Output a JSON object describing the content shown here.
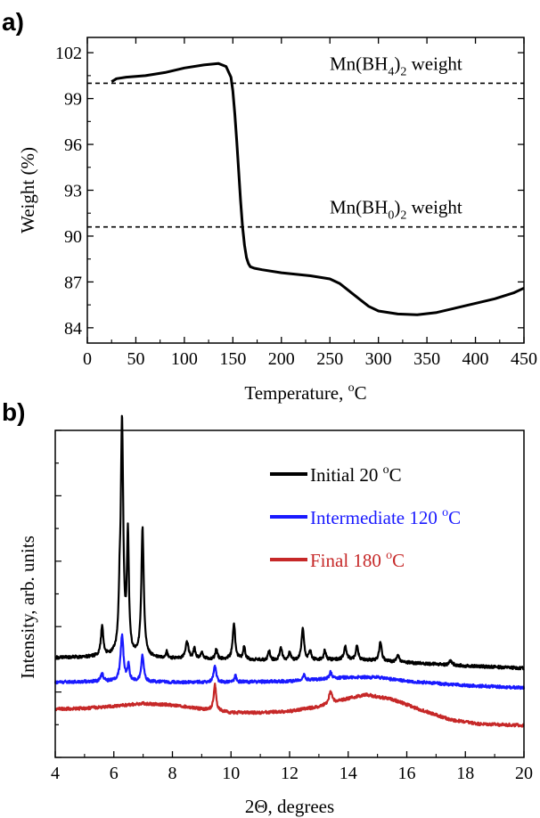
{
  "chart_data": [
    {
      "panel": "a)",
      "type": "line",
      "xlabel": "Temperature, °C",
      "xlabel_parts": [
        "Temperature, ",
        "o",
        "C"
      ],
      "ylabel": "Weight (%)",
      "xlim": [
        0,
        450
      ],
      "ylim": [
        83,
        103
      ],
      "xticks": [
        0,
        50,
        100,
        150,
        200,
        250,
        300,
        350,
        400,
        450
      ],
      "yticks": [
        84,
        87,
        90,
        93,
        96,
        99,
        102
      ],
      "reference_lines": [
        {
          "y": 100.0,
          "label": "Mn(BH4)2 weight",
          "label_parts": [
            "Mn(BH",
            "4",
            ")",
            "2",
            " weight"
          ]
        },
        {
          "y": 90.6,
          "label": "Mn(BH0)2 weight",
          "label_parts": [
            "Mn(BH",
            "0",
            ")",
            "2",
            " weight"
          ]
        }
      ],
      "series": [
        {
          "color": "#000000",
          "x": [
            25,
            30,
            40,
            60,
            80,
            100,
            120,
            135,
            143,
            148,
            150,
            152,
            154,
            156,
            158,
            160,
            162,
            164,
            166,
            168,
            172,
            180,
            200,
            230,
            250,
            260,
            270,
            280,
            290,
            300,
            320,
            340,
            360,
            380,
            400,
            420,
            440,
            450
          ],
          "y": [
            100.1,
            100.3,
            100.4,
            100.5,
            100.7,
            101.0,
            101.2,
            101.3,
            101.1,
            100.4,
            99.5,
            98.0,
            96.2,
            94.2,
            92.3,
            90.6,
            89.4,
            88.6,
            88.2,
            88.0,
            87.9,
            87.8,
            87.6,
            87.4,
            87.2,
            86.9,
            86.4,
            85.9,
            85.4,
            85.1,
            84.9,
            84.85,
            85.0,
            85.3,
            85.6,
            85.9,
            86.3,
            86.6
          ]
        }
      ]
    },
    {
      "panel": "b)",
      "type": "line",
      "xlabel": "2Θ, degrees",
      "ylabel": "Intensity, arb. units",
      "xlim": [
        4,
        20
      ],
      "ylim": [
        0,
        100
      ],
      "xticks": [
        4,
        6,
        8,
        10,
        12,
        14,
        16,
        18,
        20
      ],
      "legend_placement": "top-right",
      "series": [
        {
          "name": "Initial 20 °C",
          "name_parts": [
            "Initial 20 ",
            "o",
            "C"
          ],
          "color": "#000000",
          "baseline": {
            "x": [
              4,
              6,
              8,
              10,
              12,
              14,
              16,
              18,
              20
            ],
            "y": [
              30.5,
              30.8,
              30.2,
              30.0,
              29.5,
              30.0,
              29.0,
              28.0,
              27.3
            ]
          },
          "peaks": [
            {
              "x": 5.6,
              "h": 9,
              "w": 0.05
            },
            {
              "x": 6.28,
              "h": 70,
              "w": 0.05
            },
            {
              "x": 6.2,
              "h": 12,
              "w": 0.04
            },
            {
              "x": 6.48,
              "h": 36,
              "w": 0.04
            },
            {
              "x": 6.98,
              "h": 39,
              "w": 0.05
            },
            {
              "x": 7.8,
              "h": 2,
              "w": 0.04
            },
            {
              "x": 8.5,
              "h": 5,
              "w": 0.06
            },
            {
              "x": 8.75,
              "h": 3,
              "w": 0.04
            },
            {
              "x": 9.0,
              "h": 2,
              "w": 0.04
            },
            {
              "x": 9.5,
              "h": 3,
              "w": 0.04
            },
            {
              "x": 10.1,
              "h": 11,
              "w": 0.05
            },
            {
              "x": 10.45,
              "h": 4,
              "w": 0.04
            },
            {
              "x": 11.3,
              "h": 3,
              "w": 0.04
            },
            {
              "x": 11.7,
              "h": 4,
              "w": 0.05
            },
            {
              "x": 12.0,
              "h": 3,
              "w": 0.04
            },
            {
              "x": 12.45,
              "h": 10,
              "w": 0.05
            },
            {
              "x": 12.7,
              "h": 3,
              "w": 0.04
            },
            {
              "x": 13.2,
              "h": 3,
              "w": 0.04
            },
            {
              "x": 13.9,
              "h": 4,
              "w": 0.05
            },
            {
              "x": 14.3,
              "h": 4,
              "w": 0.05
            },
            {
              "x": 15.1,
              "h": 6,
              "w": 0.05
            },
            {
              "x": 15.7,
              "h": 2,
              "w": 0.05
            },
            {
              "x": 17.5,
              "h": 1.5,
              "w": 0.05
            }
          ]
        },
        {
          "name": "Intermediate 120 °C",
          "name_parts": [
            "Intermediate 120 ",
            "o",
            "C"
          ],
          "color": "#1a1aff",
          "baseline": {
            "x": [
              4,
              6,
              8,
              10,
              12,
              14,
              15,
              16,
              18,
              20
            ],
            "y": [
              23.0,
              23.3,
              23.0,
              23.0,
              23.3,
              24.5,
              24.5,
              23.3,
              22.0,
              21.3
            ]
          },
          "peaks": [
            {
              "x": 5.6,
              "h": 2.5,
              "w": 0.05
            },
            {
              "x": 6.28,
              "h": 14,
              "w": 0.06
            },
            {
              "x": 6.5,
              "h": 5,
              "w": 0.04
            },
            {
              "x": 6.98,
              "h": 8,
              "w": 0.05
            },
            {
              "x": 9.45,
              "h": 5,
              "w": 0.05
            },
            {
              "x": 10.15,
              "h": 2,
              "w": 0.04
            },
            {
              "x": 12.5,
              "h": 2,
              "w": 0.04
            },
            {
              "x": 13.4,
              "h": 2,
              "w": 0.05
            }
          ]
        },
        {
          "name": "Final 180 °C",
          "name_parts": [
            "Final 180 ",
            "o",
            "C"
          ],
          "color": "#c62828",
          "baseline": {
            "x": [
              4,
              5,
              6,
              7,
              8,
              9,
              10,
              11,
              12,
              13,
              14,
              14.6,
              15.5,
              16.5,
              17.5,
              18.5,
              20
            ],
            "y": [
              14.8,
              15.0,
              15.7,
              16.5,
              16.0,
              14.8,
              13.7,
              13.7,
              14.1,
              15.5,
              18.0,
              19.2,
              17.8,
              14.5,
              11.5,
              10.2,
              9.8
            ]
          },
          "peaks": [
            {
              "x": 9.45,
              "h": 8,
              "w": 0.05
            },
            {
              "x": 13.4,
              "h": 4,
              "w": 0.06
            }
          ]
        }
      ]
    }
  ]
}
